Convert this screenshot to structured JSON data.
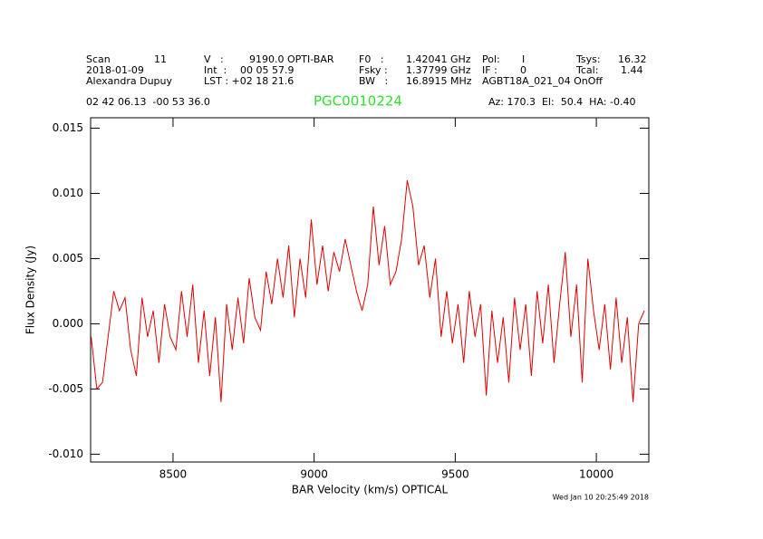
{
  "chart_data": {
    "type": "line",
    "title": "PGC0010224",
    "header": [
      "Scan",
      "11",
      "V   :",
      "9190.0 OPTI-BAR",
      "F0   :",
      "1.42041 GHz",
      "Pol:",
      "I",
      "Tsys:",
      "16.32",
      "2018-01-09",
      "Int  :",
      "00 05 57.9",
      "Fsky :",
      "1.37799 GHz",
      "IF :",
      "0",
      "Tcal:",
      "1.44",
      "Alexandra Dupuy",
      "LST : +02 18 21.6",
      "BW   :",
      "16.8915 MHz",
      "AGBT18A_021_04 OnOff",
      "02 42 06.13  -00 53 36.0",
      "Az: 170.3  El:  50.4  HA: -0.40"
    ],
    "timestamp": "Wed Jan 10 20:25:49 2018",
    "x_label": "BAR Velocity (km/s) OPTICAL",
    "y_label": "Flux Density (Jy)",
    "xlim": [
      8208,
      10186
    ],
    "ylim": [
      -0.0106,
      0.0158
    ],
    "xticks": [
      8500,
      9000,
      9500,
      10000
    ],
    "yticks": [
      {
        "value": 0.015,
        "label": "0.015"
      },
      {
        "value": 0.01,
        "label": "0.010"
      },
      {
        "value": 0.005,
        "label": "0.005"
      },
      {
        "value": 0,
        "label": "0.000"
      },
      {
        "value": -0.005,
        "label": "-0.005"
      },
      {
        "value": -0.01,
        "label": "-0.010"
      }
    ],
    "x": [
      8210,
      8230,
      8250,
      8270,
      8290,
      8310,
      8330,
      8350,
      8370,
      8390,
      8410,
      8430,
      8450,
      8470,
      8490,
      8510,
      8530,
      8550,
      8570,
      8590,
      8610,
      8630,
      8650,
      8670,
      8690,
      8710,
      8730,
      8750,
      8770,
      8790,
      8810,
      8830,
      8850,
      8870,
      8890,
      8910,
      8930,
      8950,
      8970,
      8990,
      9010,
      9030,
      9050,
      9070,
      9090,
      9110,
      9130,
      9150,
      9170,
      9190,
      9210,
      9230,
      9250,
      9270,
      9290,
      9310,
      9330,
      9350,
      9370,
      9390,
      9410,
      9430,
      9450,
      9470,
      9490,
      9510,
      9530,
      9550,
      9570,
      9590,
      9610,
      9630,
      9650,
      9670,
      9690,
      9710,
      9730,
      9750,
      9770,
      9790,
      9810,
      9830,
      9850,
      9870,
      9890,
      9910,
      9930,
      9950,
      9970,
      9990,
      10010,
      10030,
      10050,
      10070,
      10090,
      10110,
      10130,
      10150,
      10170
    ],
    "series": [
      {
        "color": "#e00000",
        "values": [
          -0.001,
          -0.005,
          -0.0045,
          -0.001,
          0.0025,
          0.001,
          0.002,
          -0.002,
          -0.004,
          0.002,
          -0.001,
          0.001,
          -0.003,
          0.0015,
          -0.001,
          -0.002,
          0.0025,
          -0.001,
          0.003,
          -0.003,
          0.001,
          -0.004,
          0.0005,
          -0.006,
          0.0015,
          -0.002,
          0.002,
          -0.0015,
          0.0035,
          0.0005,
          -0.0005,
          0.004,
          0.0015,
          0.005,
          0.002,
          0.006,
          0.0005,
          0.005,
          0.002,
          0.008,
          0.003,
          0.006,
          0.0025,
          0.0055,
          0.004,
          0.0065,
          0.0045,
          0.0025,
          0.001,
          0.003,
          0.009,
          0.0045,
          0.0075,
          0.003,
          0.004,
          0.0065,
          0.011,
          0.009,
          0.0045,
          0.006,
          0.002,
          0.005,
          -0.001,
          0.0025,
          -0.0015,
          0.0015,
          -0.003,
          0.0025,
          -0.001,
          0.0015,
          -0.0055,
          0.001,
          -0.003,
          0.0005,
          -0.0045,
          0.002,
          -0.002,
          0.0015,
          -0.004,
          0.0025,
          -0.0015,
          0.003,
          -0.003,
          0.0015,
          0.0055,
          -0.001,
          0.003,
          -0.0045,
          0.005,
          0.001,
          -0.002,
          0.0015,
          -0.0035,
          0.002,
          -0.003,
          0.0005,
          -0.006,
          0,
          0.001
        ]
      }
    ]
  }
}
